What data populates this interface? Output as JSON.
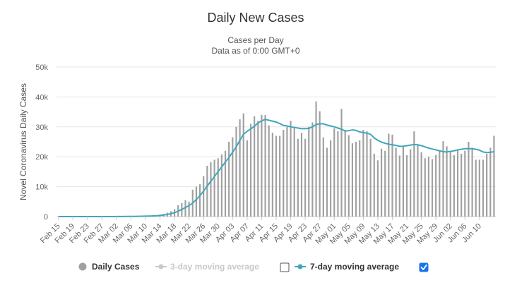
{
  "chart_data": {
    "type": "bar",
    "title": "Daily New Cases",
    "subtitle_lines": [
      "Cases per Day",
      "Data as of 0:00 GMT+0"
    ],
    "ylabel": "Novel Coronavirus Daily Cases",
    "ylim": [
      0,
      50000
    ],
    "yticks": [
      0,
      10000,
      20000,
      30000,
      40000,
      50000
    ],
    "ytick_labels": [
      "0",
      "10k",
      "20k",
      "30k",
      "40k",
      "50k"
    ],
    "grid": true,
    "legend_position": "bottom",
    "x_start": "Feb 15",
    "x_tick_labels": [
      "Feb 15",
      "Feb 19",
      "Feb 23",
      "Feb 27",
      "Mar 02",
      "Mar 06",
      "Mar 10",
      "Mar 14",
      "Mar 18",
      "Mar 22",
      "Mar 26",
      "Mar 30",
      "Apr 03",
      "Apr 07",
      "Apr 11",
      "Apr 15",
      "Apr 19",
      "Apr 23",
      "Apr 27",
      "May 01",
      "May 05",
      "May 09",
      "May 13",
      "May 17",
      "May 21",
      "May 25",
      "May 29",
      "Jun 02",
      "Jun 06",
      "Jun 10"
    ],
    "x_tick_every": 4,
    "colors": {
      "bars": "#a0a0a0",
      "moving_average": "#3fa7ba",
      "grid": "#e6e6e6",
      "disabled": "#c8c8c8"
    },
    "series": [
      {
        "name": "Daily Cases",
        "values": [
          0,
          0,
          0,
          0,
          0,
          0,
          0,
          0,
          0,
          0,
          0,
          0,
          0,
          0,
          0,
          0,
          10,
          20,
          30,
          50,
          80,
          100,
          150,
          200,
          250,
          300,
          400,
          500,
          700,
          900,
          1300,
          1800,
          2500,
          3800,
          4500,
          5500,
          5000,
          9000,
          10000,
          10800,
          13500,
          17000,
          18200,
          19000,
          19500,
          20800,
          22000,
          25000,
          26500,
          30000,
          32500,
          34500,
          25500,
          31000,
          33500,
          32000,
          34000,
          34000,
          30500,
          28000,
          27000,
          27000,
          29000,
          30000,
          32000,
          29500,
          26000,
          28000,
          26000,
          30000,
          31500,
          38500,
          35200,
          26500,
          23000,
          25500,
          29500,
          28500,
          36000,
          29000,
          27200,
          24500,
          25000,
          25500,
          29000,
          28500,
          26000,
          21000,
          18800,
          22700,
          22000,
          27700,
          27400,
          23000,
          20400,
          23300,
          20500,
          22500,
          28500,
          24000,
          21500,
          19500,
          20000,
          19200,
          20600,
          22000,
          25200,
          23500,
          22000,
          20500,
          22500,
          21000,
          22000,
          25000,
          23000,
          19000,
          19000,
          19000,
          21000,
          23000,
          27000
        ]
      },
      {
        "name": "7-day moving average",
        "values": [
          0,
          0,
          0,
          0,
          0,
          0,
          0,
          0,
          0,
          0,
          0,
          0,
          0,
          0,
          0,
          0,
          20,
          30,
          40,
          50,
          60,
          70,
          90,
          110,
          140,
          170,
          220,
          280,
          380,
          520,
          700,
          950,
          1300,
          1800,
          2400,
          3000,
          3700,
          4500,
          5700,
          7000,
          8500,
          10200,
          11800,
          13400,
          15000,
          16600,
          18200,
          19800,
          21500,
          23300,
          25500,
          27500,
          28500,
          29300,
          30200,
          31300,
          32000,
          32500,
          32200,
          31900,
          31600,
          31100,
          30500,
          30300,
          30000,
          29800,
          29600,
          29400,
          29400,
          29500,
          30000,
          30800,
          31000,
          31000,
          30600,
          30300,
          30000,
          29600,
          29200,
          28600,
          28700,
          29000,
          28800,
          28300,
          28100,
          27900,
          27500,
          26300,
          25500,
          24900,
          24500,
          24200,
          24000,
          23800,
          23500,
          23500,
          23700,
          23900,
          24100,
          24000,
          23700,
          23300,
          22900,
          22600,
          22300,
          22000,
          21700,
          21600,
          21800,
          22000,
          22300,
          22500,
          22700,
          22700,
          22700,
          22500,
          22200,
          21600,
          21400,
          21500,
          21700
        ]
      }
    ]
  },
  "legend": {
    "daily_cases": "Daily Cases",
    "three_day": "3-day moving average",
    "seven_day": "7-day moving average",
    "three_day_checked": false,
    "seven_day_checked": true
  }
}
